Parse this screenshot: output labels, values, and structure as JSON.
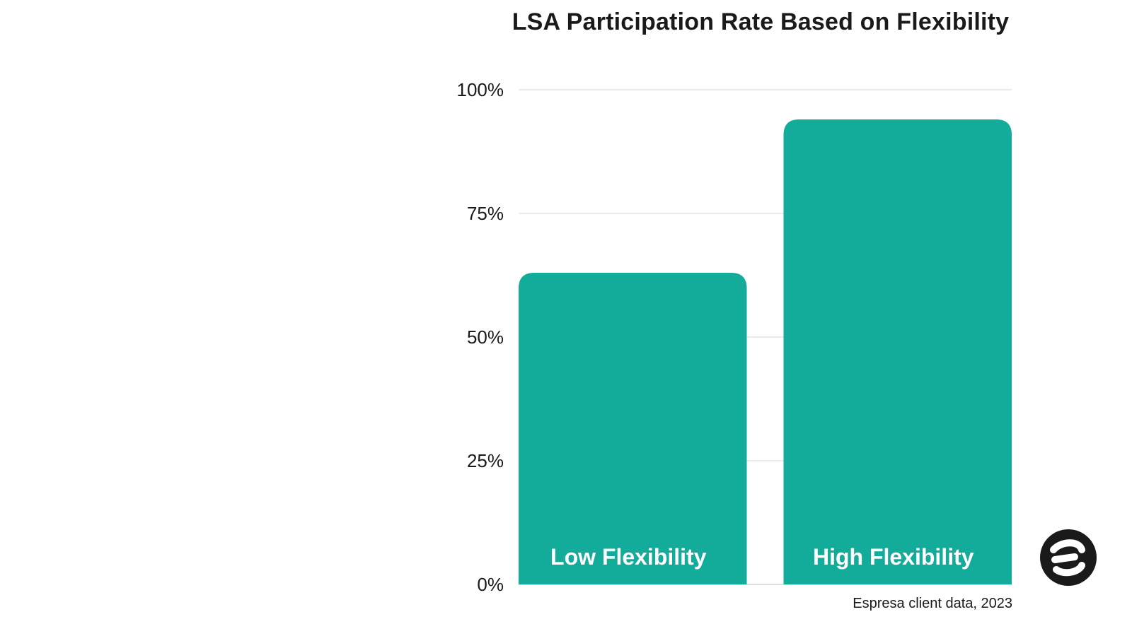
{
  "chart_data": {
    "type": "bar",
    "title": "LSA Participation Rate Based on Flexibility",
    "categories": [
      "Low Flexibility",
      "High Flexibility"
    ],
    "values": [
      63,
      94
    ],
    "unit": "%",
    "ylim": [
      0,
      100
    ],
    "yticks": [
      0,
      25,
      50,
      75,
      100
    ],
    "ytick_labels": [
      "0%",
      "25%",
      "50%",
      "75%",
      "100%"
    ],
    "xlabel": "",
    "ylabel": "",
    "grid": true,
    "bar_labels_inside": true,
    "bar_color": "#13ac9a",
    "grid_color": "#dddddd"
  },
  "source": "Espresa client data, 2023",
  "logo": {
    "icon": "espresa-logo-icon",
    "color": "#1a1a1a"
  }
}
